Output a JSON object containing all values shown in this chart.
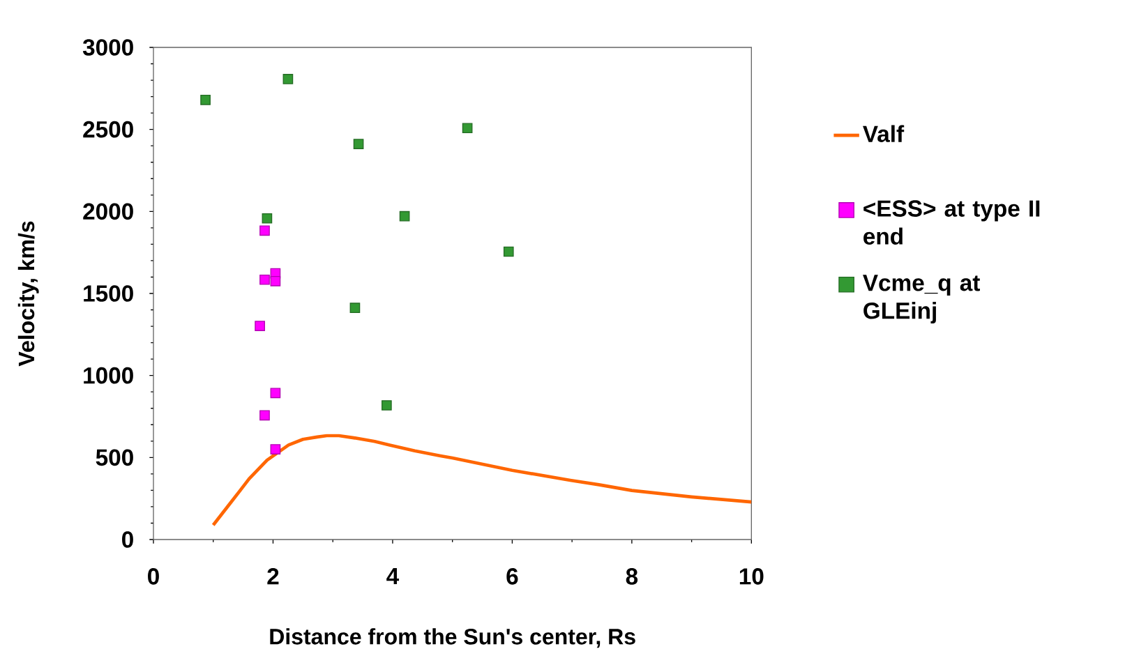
{
  "chart_data": {
    "type": "scatter",
    "xlabel": "Distance from the Sun's center, Rs",
    "ylabel": "Velocity, km/s",
    "xlim": [
      0,
      10
    ],
    "ylim": [
      0,
      3000
    ],
    "xticks": [
      0,
      2,
      4,
      6,
      8,
      10
    ],
    "yticks": [
      0,
      500,
      1000,
      1500,
      2000,
      2500,
      3000
    ],
    "grid": false,
    "legend": "right",
    "series": [
      {
        "name": "Valf",
        "type": "line",
        "color": "#ff6600",
        "x": [
          1.0,
          1.29,
          1.45,
          1.6,
          1.9,
          2.26,
          2.5,
          2.74,
          2.9,
          3.1,
          3.35,
          3.7,
          3.95,
          4.37,
          4.8,
          5.0,
          6.0,
          6.97,
          7.45,
          8.0,
          9.0,
          10.0
        ],
        "values": [
          88,
          224,
          299,
          370,
          484,
          576,
          611,
          625,
          633,
          633,
          620,
          598,
          576,
          541,
          510,
          497,
          422,
          361,
          334,
          299,
          260,
          229
        ]
      },
      {
        "name": "<ESS> at  type II end",
        "marker": "square",
        "color": "#ff00ff",
        "x": [
          1.86,
          1.86,
          2.04,
          2.04,
          1.78,
          2.04,
          1.86,
          2.04
        ],
        "values": [
          1883,
          1584,
          1623,
          1575,
          1302,
          893,
          757,
          550
        ]
      },
      {
        "name": "Vcme_q at GLEinj",
        "marker": "square",
        "color": "#339933",
        "x": [
          0.87,
          2.25,
          3.43,
          5.25,
          1.9,
          4.2,
          5.94,
          3.37,
          3.9
        ],
        "values": [
          2680,
          2807,
          2411,
          2508,
          1958,
          1971,
          1755,
          1412,
          818
        ]
      }
    ]
  }
}
